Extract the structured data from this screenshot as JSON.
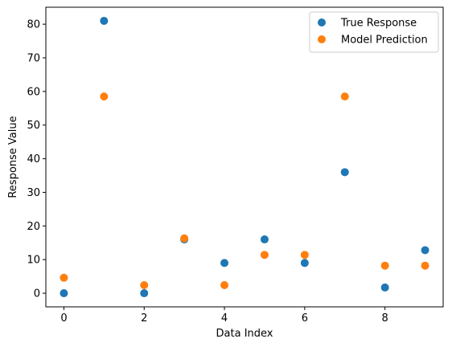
{
  "chart_data": {
    "type": "scatter",
    "title": "",
    "xlabel": "Data Index",
    "ylabel": "Response Value",
    "xlim": [
      -0.45,
      9.45
    ],
    "ylim": [
      -4.05,
      85.05
    ],
    "xticks": [
      0,
      2,
      4,
      6,
      8
    ],
    "yticks": [
      0,
      10,
      20,
      30,
      40,
      50,
      60,
      70,
      80
    ],
    "grid": false,
    "legend_position": "upper right",
    "x": [
      0,
      1,
      2,
      3,
      4,
      5,
      6,
      7,
      8,
      9
    ],
    "series": [
      {
        "name": "True Response",
        "color": "#1f77b4",
        "values": [
          0,
          81,
          0,
          16,
          9,
          16,
          9,
          36,
          1.7,
          12.8
        ]
      },
      {
        "name": "Model Prediction",
        "color": "#ff7f0e",
        "values": [
          4.6,
          58.5,
          2.4,
          16.3,
          2.4,
          11.4,
          11.4,
          58.5,
          8.2,
          8.2
        ]
      }
    ]
  }
}
